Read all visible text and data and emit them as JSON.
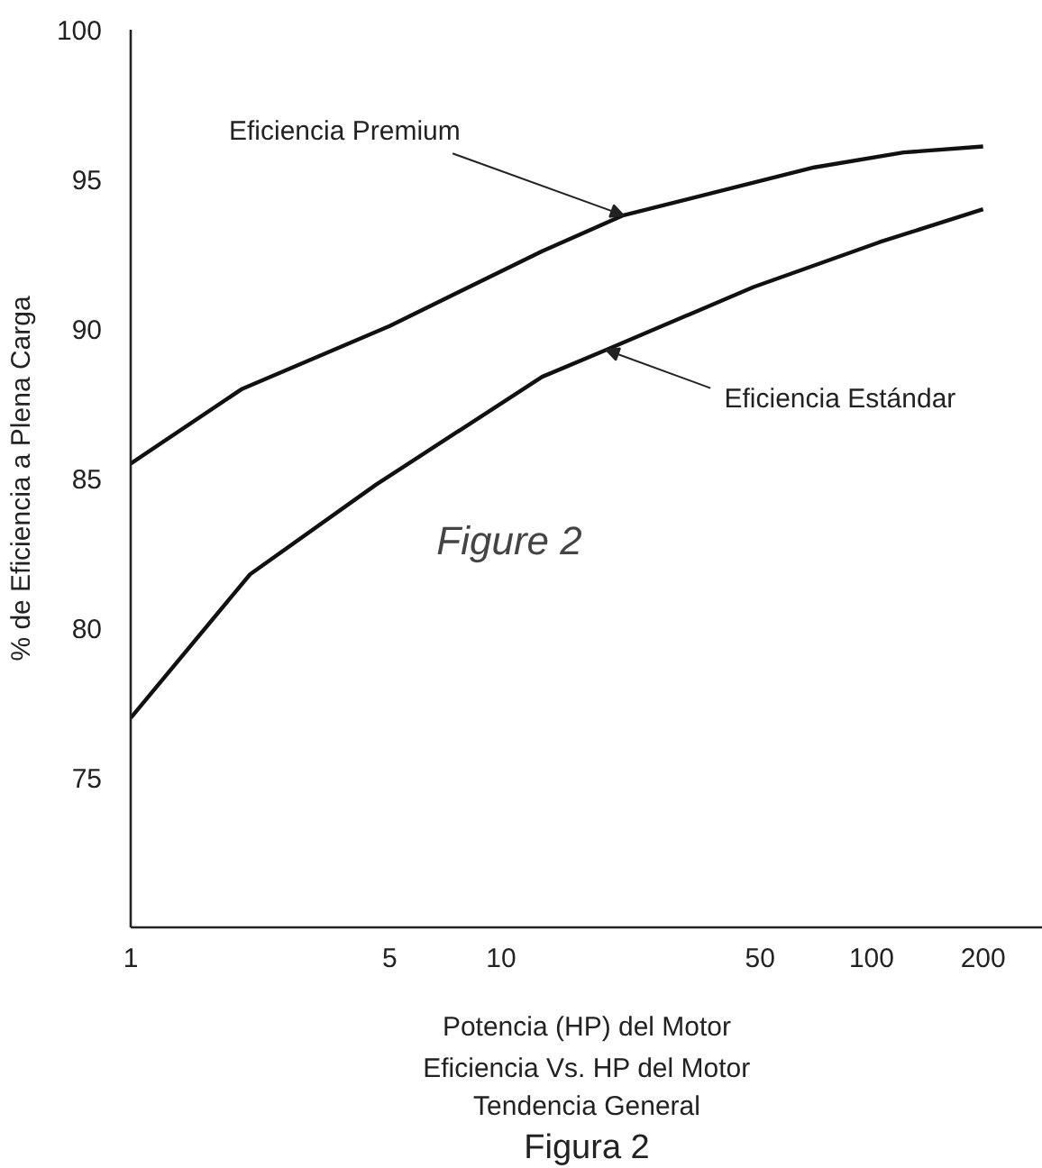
{
  "chart_data": {
    "type": "line",
    "xlabel": "Potencia (HP) del Motor",
    "ylabel": "% de Eficiencia a Plena Carga",
    "log": "x",
    "xlim": [
      1,
      290
    ],
    "ylim": [
      70,
      100
    ],
    "xticks": [
      1,
      5,
      10,
      50,
      100,
      200
    ],
    "yticks": [
      75,
      80,
      85,
      90,
      95,
      100
    ],
    "grid": false,
    "marker": "none",
    "line_style": "solid",
    "series": [
      {
        "color": "#111111",
        "x": [
          1,
          2,
          5,
          12.9,
          21.4,
          70,
          122,
          200
        ],
        "values": [
          85.5,
          88.0,
          90.1,
          92.6,
          93.8,
          95.4,
          95.9,
          96.1
        ]
      },
      {
        "color": "#111111",
        "x": [
          1,
          2.1,
          4.6,
          12.9,
          19.2,
          48,
          105,
          200
        ],
        "values": [
          77.0,
          81.8,
          84.8,
          88.4,
          89.3,
          91.4,
          92.9,
          94.0
        ]
      }
    ],
    "annotations": [
      {
        "text": "Eficiencia Premium",
        "x": 21.4,
        "y": 93.8
      },
      {
        "text": "Eficiencia Estándar",
        "x": 19.2,
        "y": 89.3
      },
      "Figure 2",
      "Eficiencia Vs. HP del Motor",
      "Tendencia General",
      "Figura 2"
    ]
  }
}
